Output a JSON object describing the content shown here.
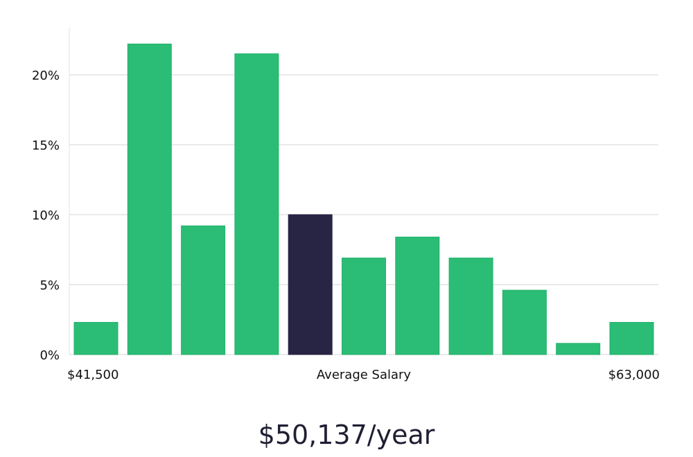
{
  "chart_data": {
    "type": "bar",
    "xlabel": "Average Salary",
    "x_min_label": "$41,500",
    "x_max_label": "$63,000",
    "yticks": [
      0,
      5,
      10,
      15,
      20
    ],
    "ytick_labels": [
      "0%",
      "5%",
      "10%",
      "15%",
      "20%"
    ],
    "ylim": [
      0,
      23.5
    ],
    "values": [
      2.3,
      22.2,
      9.2,
      21.5,
      10.0,
      6.9,
      8.4,
      6.9,
      4.6,
      0.8,
      2.3
    ],
    "highlight_index": 4,
    "colors": {
      "bar": "#2bbd76",
      "bar_edge": "#22b06a",
      "highlight": "#272444",
      "grid": "#e3e3e3",
      "axis": "#e0e0e0"
    }
  },
  "salary": {
    "value": "$50,137/year"
  }
}
